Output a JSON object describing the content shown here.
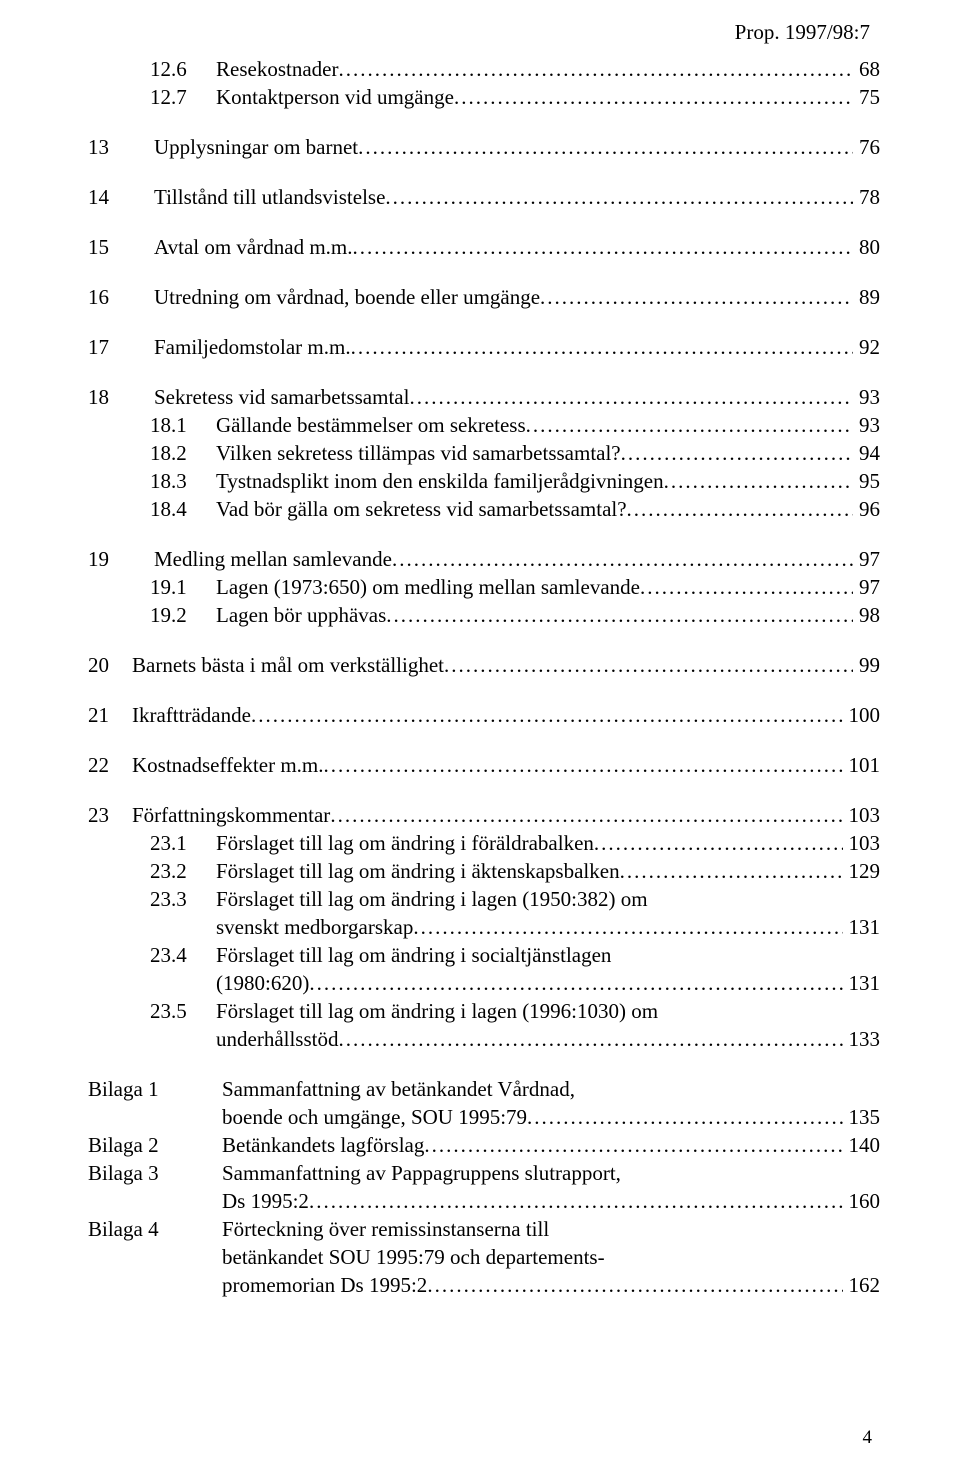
{
  "header": {
    "prop": "Prop. 1997/98:7"
  },
  "footer": {
    "page": "4"
  },
  "entries": [
    {
      "lvl": 2,
      "num": "12.6",
      "text": "Resekostnader",
      "page": "68"
    },
    {
      "lvl": 2,
      "num": "12.7",
      "text": "Kontaktperson vid umgänge",
      "page": "75"
    },
    {
      "spacer": true
    },
    {
      "lvl": 1,
      "num": "13",
      "text": "Upplysningar om barnet",
      "page": "76"
    },
    {
      "spacer": true
    },
    {
      "lvl": 1,
      "num": "14",
      "text": "Tillstånd till utlandsvistelse",
      "page": "78"
    },
    {
      "spacer": true
    },
    {
      "lvl": 1,
      "num": "15",
      "text": "Avtal om vårdnad m.m.",
      "page": "80"
    },
    {
      "spacer": true
    },
    {
      "lvl": 1,
      "num": "16",
      "text": "Utredning om vårdnad, boende eller umgänge",
      "page": "89"
    },
    {
      "spacer": true
    },
    {
      "lvl": 1,
      "num": "17",
      "text": "Familjedomstolar m.m.",
      "page": "92"
    },
    {
      "spacer": true
    },
    {
      "lvl": 1,
      "num": "18",
      "text": "Sekretess vid samarbetssamtal",
      "page": "93"
    },
    {
      "lvl": 2,
      "num": "18.1",
      "text": "Gällande bestämmelser om sekretess",
      "page": "93"
    },
    {
      "lvl": 2,
      "num": "18.2",
      "text": "Vilken sekretess tillämpas vid samarbetssamtal?",
      "page": "94"
    },
    {
      "lvl": 2,
      "num": "18.3",
      "text": "Tystnadsplikt inom den enskilda familjerådgivningen",
      "page": "95"
    },
    {
      "lvl": 2,
      "num": "18.4",
      "text": "Vad bör gälla om sekretess vid samarbetssamtal?",
      "page": "96"
    },
    {
      "spacer": true
    },
    {
      "lvl": 1,
      "num": "19",
      "text": "Medling mellan samlevande",
      "page": "97"
    },
    {
      "lvl": 2,
      "num": "19.1",
      "text": "Lagen (1973:650) om medling mellan samlevande",
      "page": "97"
    },
    {
      "lvl": 2,
      "num": "19.2",
      "text": "Lagen bör upphävas",
      "page": "98"
    },
    {
      "spacer": true
    },
    {
      "lvl": 0,
      "num": "20",
      "text": "Barnets bästa i mål om verkställighet",
      "page": "99"
    },
    {
      "spacer": true
    },
    {
      "lvl": 0,
      "num": "21",
      "text": "Ikraftträdande",
      "page": "100"
    },
    {
      "spacer": true
    },
    {
      "lvl": 0,
      "num": "22",
      "text": "Kostnadseffekter m.m.",
      "page": "101"
    },
    {
      "spacer": true
    },
    {
      "lvl": 0,
      "num": "23",
      "text": "Författningskommentar",
      "page": "103"
    },
    {
      "lvl": 2,
      "num": "23.1",
      "text": "Förslaget till lag om ändring i föräldrabalken",
      "page": "103"
    },
    {
      "lvl": 2,
      "num": "23.2",
      "text": "Förslaget till lag om ändring i äktenskapsbalken",
      "page": "129"
    },
    {
      "lvl": 2,
      "num": "23.3",
      "text": "Förslaget till lag om ändring i lagen (1950:382) om",
      "nobreak": true
    },
    {
      "lvl": 2,
      "num": "",
      "text": "svenskt medborgarskap",
      "page": "131",
      "cont": true
    },
    {
      "lvl": 2,
      "num": "23.4",
      "text": "Förslaget till lag om ändring i socialtjänstlagen",
      "nobreak": true
    },
    {
      "lvl": 2,
      "num": "",
      "text": "(1980:620)",
      "page": "131",
      "cont": true
    },
    {
      "lvl": 2,
      "num": "23.5",
      "text": "Förslaget till lag om ändring i lagen (1996:1030) om",
      "nobreak": true
    },
    {
      "lvl": 2,
      "num": "",
      "text": "underhållsstöd",
      "page": "133",
      "cont": true
    },
    {
      "spacer": true
    },
    {
      "lvl": "b",
      "num": "Bilaga 1",
      "text": "Sammanfattning av betänkandet Vårdnad,",
      "nobreak": true
    },
    {
      "lvl": "b",
      "num": "",
      "text": "boende och umgänge, SOU 1995:79",
      "page": "135",
      "cont": true
    },
    {
      "lvl": "b",
      "num": "Bilaga 2",
      "text": "Betänkandets lagförslag",
      "page": "140"
    },
    {
      "lvl": "b",
      "num": "Bilaga 3",
      "text": "Sammanfattning av Pappagruppens slutrapport,",
      "nobreak": true
    },
    {
      "lvl": "b",
      "num": "",
      "text": "Ds 1995:2",
      "page": "160",
      "cont": true
    },
    {
      "lvl": "b",
      "num": "Bilaga 4",
      "text": "Förteckning över remissinstanserna till",
      "nobreak": true
    },
    {
      "lvl": "b",
      "num": "",
      "text": "betänkandet SOU 1995:79 och departements-",
      "nobreak": true,
      "cont": true
    },
    {
      "lvl": "b",
      "num": "",
      "text": "promemorian Ds 1995:2",
      "page": "162",
      "cont": true
    }
  ]
}
